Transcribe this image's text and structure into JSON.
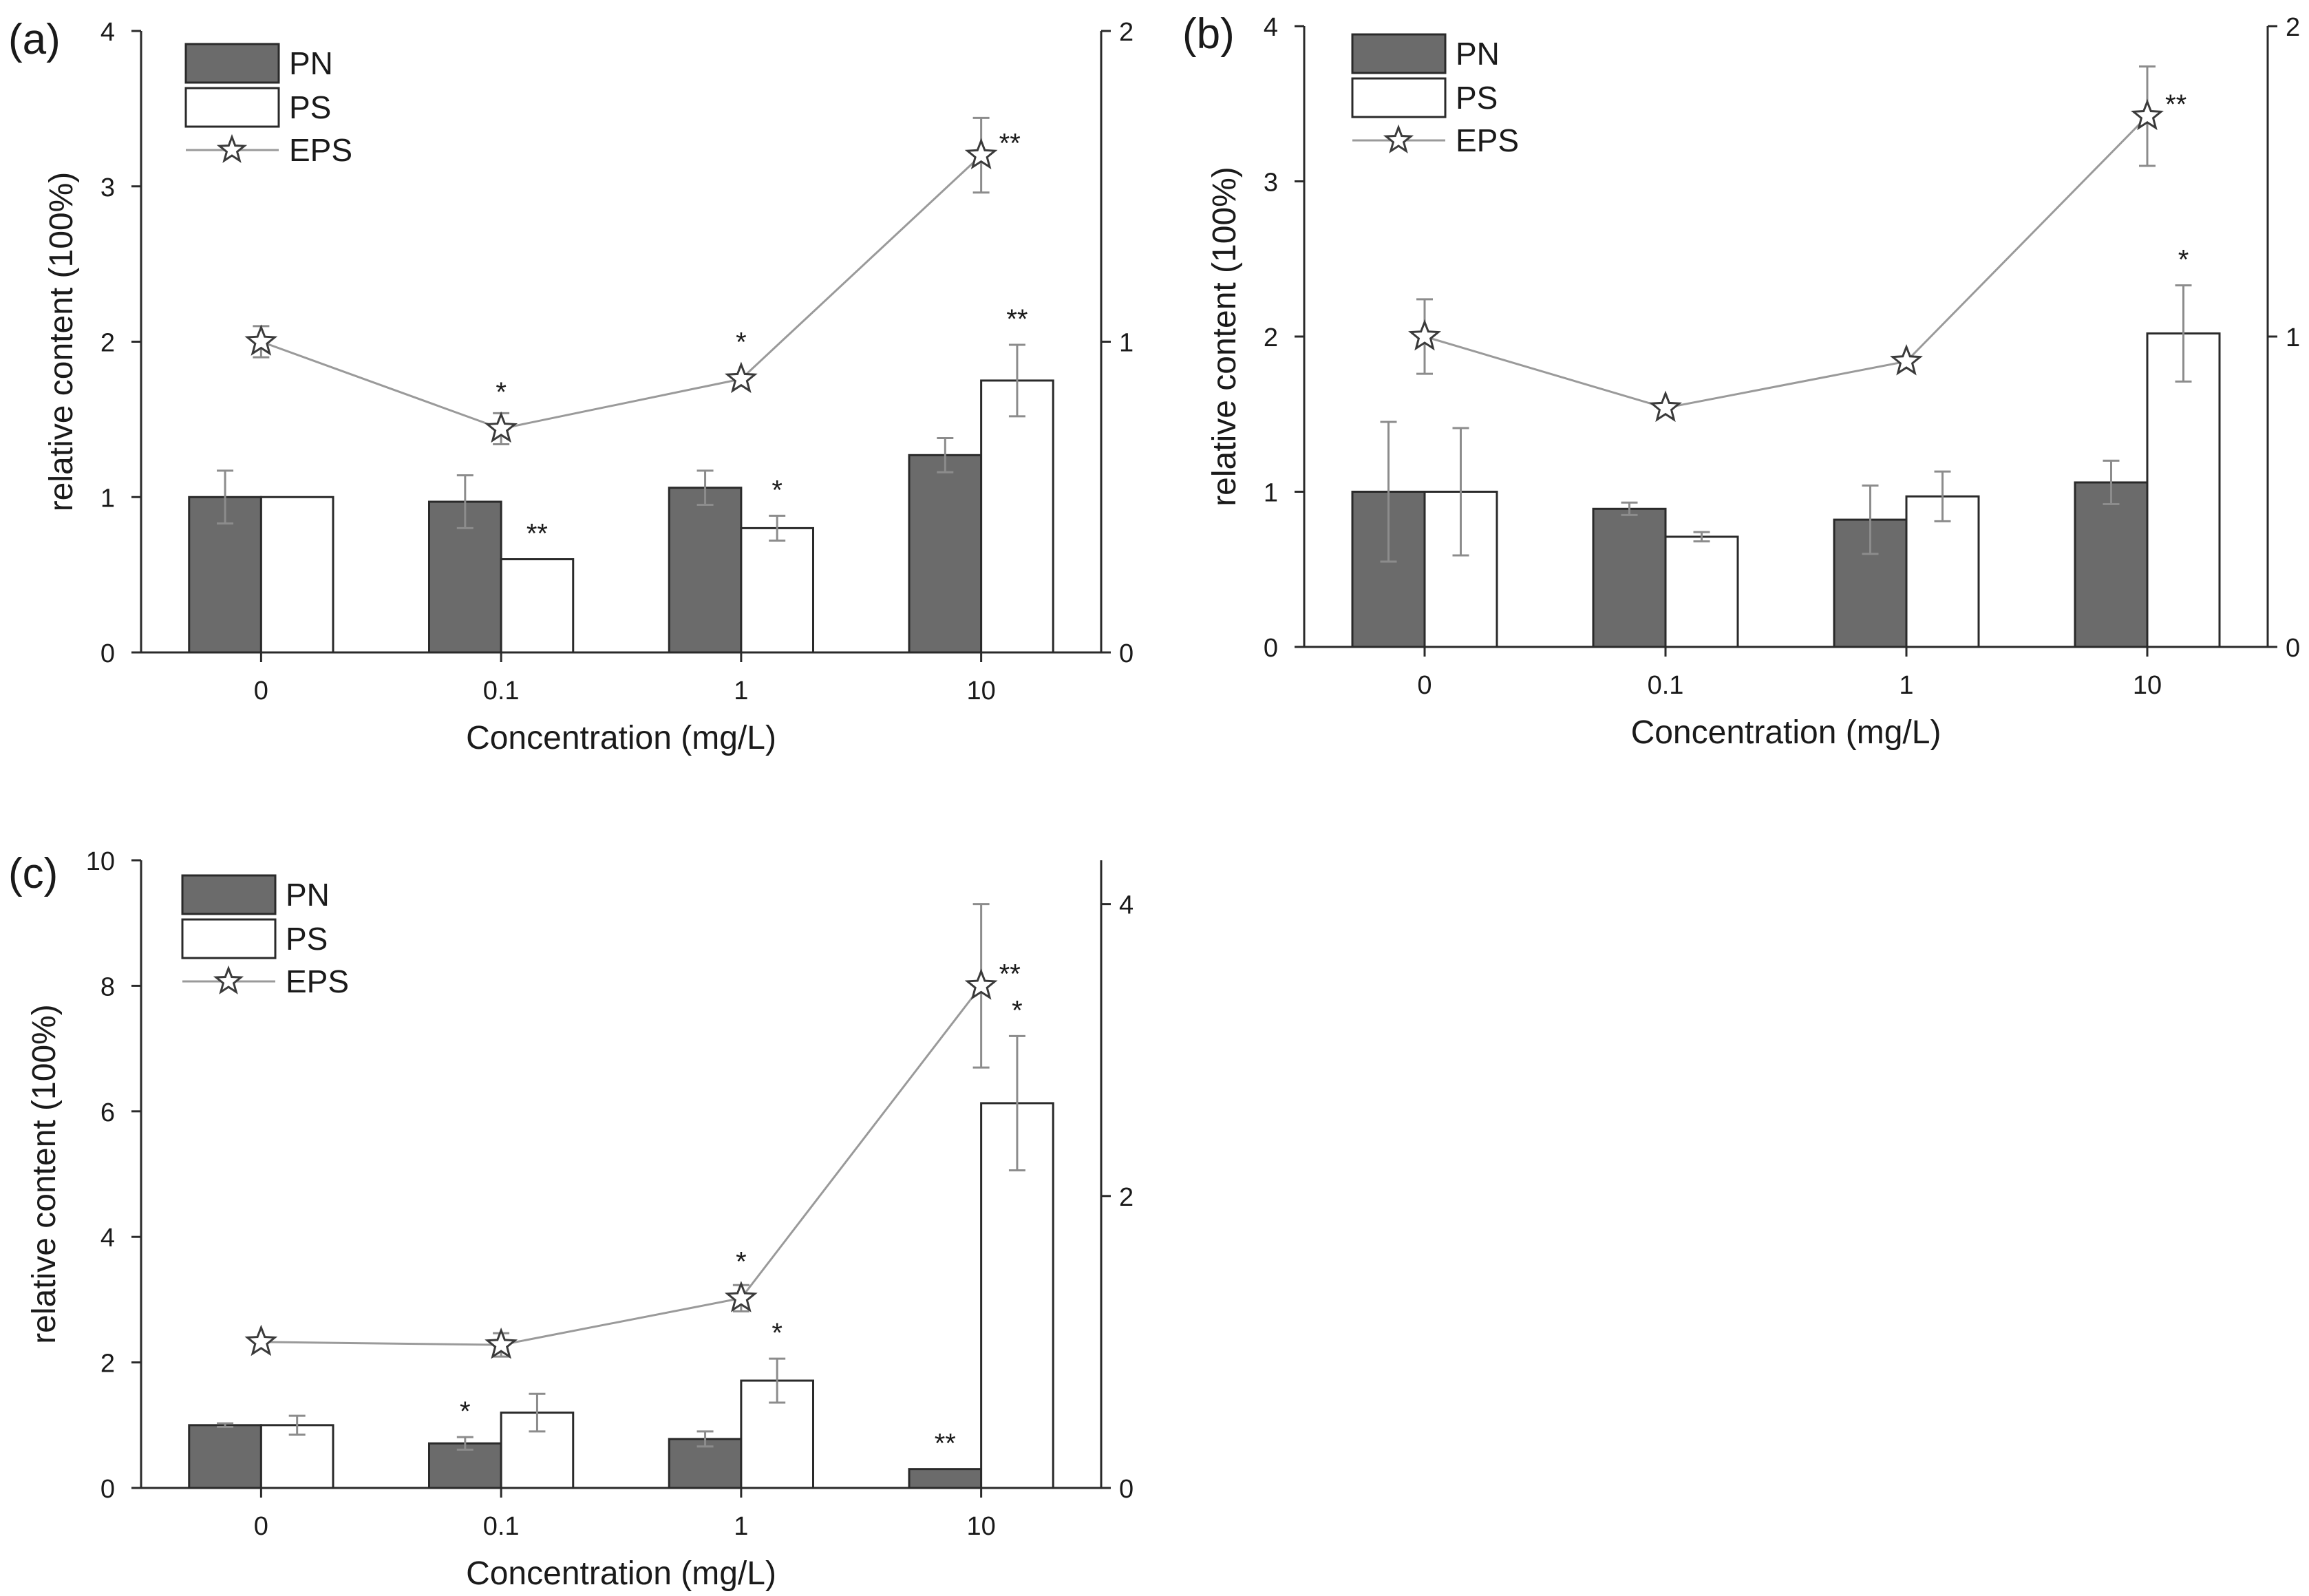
{
  "chart_data": [
    {
      "type": "bar",
      "panel_label": "(a)",
      "categories": [
        "0",
        "0.1",
        "1",
        "10"
      ],
      "xlabel": "Concentration (mg/L)",
      "ylabel": "relative content (100%)",
      "ylim": [
        0,
        4
      ],
      "yticks": [
        "0",
        "1",
        "2",
        "3",
        "4"
      ],
      "y2lim": [
        0,
        2
      ],
      "y2ticks": [
        "0",
        "1",
        "2"
      ],
      "legend": [
        "PN",
        "PS",
        "EPS"
      ],
      "legend_position": "top-left",
      "series": [
        {
          "name": "PN",
          "kind": "bar",
          "values": [
            1.0,
            0.97,
            1.06,
            1.27
          ],
          "errors": [
            0.17,
            0.17,
            0.11,
            0.11
          ],
          "sig": [
            "",
            "",
            "",
            ""
          ]
        },
        {
          "name": "PS",
          "kind": "bar",
          "values": [
            1.0,
            0.6,
            0.8,
            1.75
          ],
          "errors": [
            0.0,
            0.0,
            0.08,
            0.23
          ],
          "sig": [
            "",
            "**",
            "*",
            "**"
          ]
        },
        {
          "name": "EPS",
          "kind": "line",
          "axis": "right",
          "values": [
            1.0,
            0.72,
            0.88,
            1.6
          ],
          "errors": [
            0.05,
            0.05,
            0.0,
            0.12
          ],
          "sig": [
            "",
            "*",
            "*",
            "**"
          ]
        }
      ]
    },
    {
      "type": "bar",
      "panel_label": "(b)",
      "categories": [
        "0",
        "0.1",
        "1",
        "10"
      ],
      "xlabel": "Concentration (mg/L)",
      "ylabel": "relative content (100%)",
      "ylim": [
        0,
        4
      ],
      "yticks": [
        "0",
        "1",
        "2",
        "3",
        "4"
      ],
      "y2lim": [
        0,
        2
      ],
      "y2ticks": [
        "0",
        "1",
        "2"
      ],
      "legend": [
        "PN",
        "PS",
        "EPS"
      ],
      "legend_position": "top-left",
      "series": [
        {
          "name": "PN",
          "kind": "bar",
          "values": [
            1.0,
            0.89,
            0.82,
            1.06
          ],
          "errors": [
            0.45,
            0.04,
            0.22,
            0.14
          ],
          "sig": [
            "",
            "",
            "",
            ""
          ]
        },
        {
          "name": "PS",
          "kind": "bar",
          "values": [
            1.0,
            0.71,
            0.97,
            2.02
          ],
          "errors": [
            0.41,
            0.03,
            0.16,
            0.31
          ],
          "sig": [
            "",
            "",
            "",
            "*"
          ]
        },
        {
          "name": "EPS",
          "kind": "line",
          "axis": "right",
          "values": [
            1.0,
            0.77,
            0.92,
            1.71
          ],
          "errors": [
            0.12,
            0.0,
            0.0,
            0.16
          ],
          "sig": [
            "",
            "",
            "",
            "**"
          ]
        }
      ]
    },
    {
      "type": "bar",
      "panel_label": "(c)",
      "categories": [
        "0",
        "0.1",
        "1",
        "10"
      ],
      "xlabel": "Concentration (mg/L)",
      "ylabel": "relative content (100%)",
      "ylim": [
        0,
        10
      ],
      "yticks": [
        "0",
        "2",
        "4",
        "6",
        "8",
        "10"
      ],
      "y2lim": [
        0,
        4.3
      ],
      "y2ticks": [
        "0",
        "2",
        "4"
      ],
      "legend": [
        "PN",
        "PS",
        "EPS"
      ],
      "legend_position": "top-left",
      "series": [
        {
          "name": "PN",
          "kind": "bar",
          "values": [
            1.0,
            0.71,
            0.78,
            0.3
          ],
          "errors": [
            0.03,
            0.1,
            0.12,
            0.0
          ],
          "sig": [
            "",
            "*",
            "",
            "**"
          ]
        },
        {
          "name": "PS",
          "kind": "bar",
          "values": [
            1.0,
            1.2,
            1.71,
            6.13
          ],
          "errors": [
            0.15,
            0.3,
            0.35,
            1.07
          ],
          "sig": [
            "",
            "",
            "*",
            "*"
          ]
        },
        {
          "name": "EPS",
          "kind": "line",
          "axis": "right",
          "values": [
            1.0,
            0.98,
            1.3,
            3.44
          ],
          "errors": [
            0.0,
            0.08,
            0.09,
            0.56
          ],
          "sig": [
            "",
            "",
            "*",
            "**"
          ]
        }
      ]
    }
  ]
}
